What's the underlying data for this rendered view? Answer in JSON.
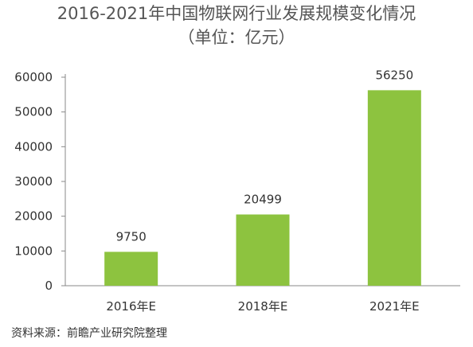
{
  "chart_data": {
    "type": "bar",
    "title": "2016-2021年中国物联网行业发展规模变化情况",
    "subtitle": "（单位：亿元）",
    "categories": [
      "2016年E",
      "2018年E",
      "2021年E"
    ],
    "values": [
      9750,
      20499,
      56250
    ],
    "data_labels": [
      "9750",
      "20499",
      "56250"
    ],
    "yticks": [
      "0",
      "10000",
      "20000",
      "30000",
      "40000",
      "50000",
      "60000"
    ],
    "ylim": [
      0,
      60000
    ],
    "grid": false,
    "legend": "none",
    "bar_color": "#8dc33f"
  },
  "source": "资料来源：前瞻产业研究院整理"
}
